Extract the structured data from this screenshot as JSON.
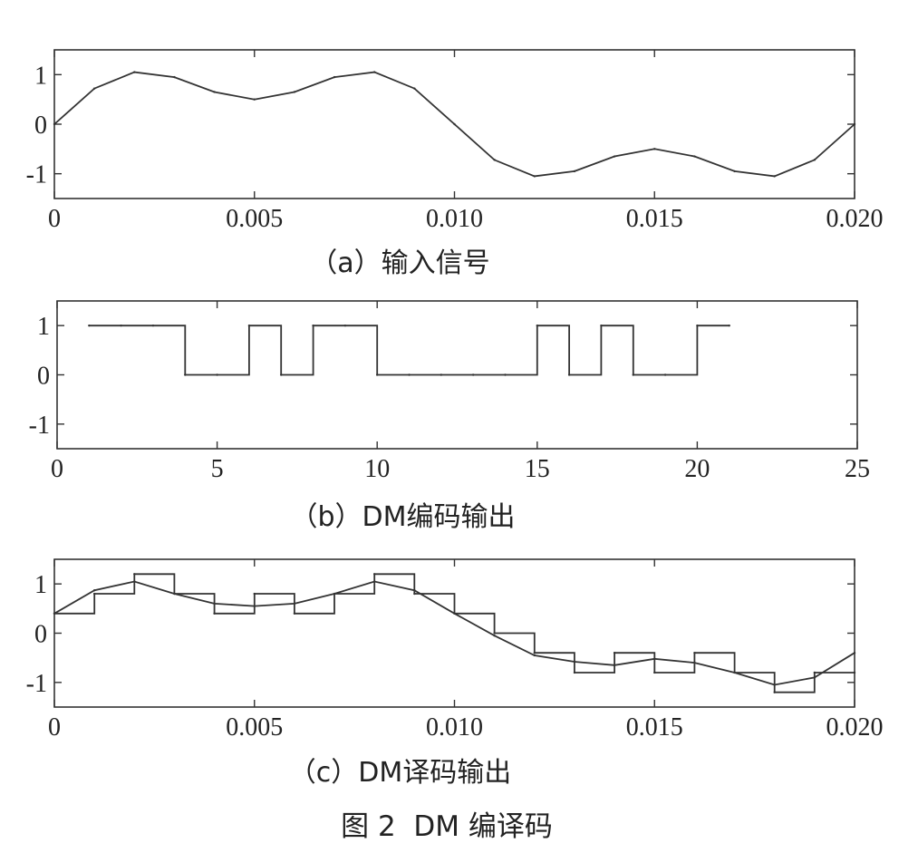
{
  "figure_caption": "图 2  DM 编译码",
  "chart_data": [
    {
      "type": "line",
      "caption": "（a）输入信号",
      "xlim": [
        0,
        0.02
      ],
      "ylim": [
        -1.5,
        1.5
      ],
      "xticks": [
        "0",
        "0.005",
        "0.010",
        "0.015",
        "0.020"
      ],
      "xtick_values": [
        0,
        0.005,
        0.01,
        0.015,
        0.02
      ],
      "yticks": [
        "1",
        "0",
        "-1"
      ],
      "ytick_values": [
        1,
        0,
        -1
      ],
      "series": [
        {
          "style": "line",
          "x": [
            0,
            0.001,
            0.002,
            0.003,
            0.004,
            0.005,
            0.006,
            0.007,
            0.008,
            0.009,
            0.01,
            0.011,
            0.012,
            0.013,
            0.014,
            0.015,
            0.016,
            0.017,
            0.018,
            0.019,
            0.02
          ],
          "y": [
            0,
            0.72,
            1.05,
            0.95,
            0.65,
            0.5,
            0.65,
            0.95,
            1.05,
            0.72,
            0,
            -0.72,
            -1.05,
            -0.95,
            -0.65,
            -0.5,
            -0.65,
            -0.95,
            -1.05,
            -0.72,
            0
          ]
        }
      ]
    },
    {
      "type": "line",
      "caption": "（b）DM编码输出",
      "xlim": [
        0,
        25
      ],
      "ylim": [
        -1.5,
        1.5
      ],
      "xticks": [
        "0",
        "5",
        "10",
        "15",
        "20",
        "25"
      ],
      "xtick_values": [
        0,
        5,
        10,
        15,
        20,
        25
      ],
      "yticks": [
        "1",
        "0",
        "-1"
      ],
      "ytick_values": [
        1,
        0,
        -1
      ],
      "series": [
        {
          "style": "step",
          "x": [
            1,
            2,
            3,
            4,
            5,
            6,
            7,
            8,
            9,
            10,
            11,
            12,
            13,
            14,
            15,
            16,
            17,
            18,
            19,
            20,
            21
          ],
          "y": [
            1,
            1,
            1,
            0,
            0,
            1,
            0,
            1,
            1,
            0,
            0,
            0,
            0,
            0,
            1,
            0,
            1,
            0,
            0,
            1,
            1
          ]
        }
      ]
    },
    {
      "type": "line",
      "caption": "（c）DM译码输出",
      "xlim": [
        0,
        0.02
      ],
      "ylim": [
        -1.5,
        1.5
      ],
      "xticks": [
        "0",
        "0.005",
        "0.010",
        "0.015",
        "0.020"
      ],
      "xtick_values": [
        0,
        0.005,
        0.01,
        0.015,
        0.02
      ],
      "yticks": [
        "1",
        "0",
        "-1"
      ],
      "ytick_values": [
        1,
        0,
        -1
      ],
      "series": [
        {
          "style": "step",
          "x": [
            0,
            0.001,
            0.002,
            0.003,
            0.004,
            0.005,
            0.006,
            0.007,
            0.008,
            0.009,
            0.01,
            0.011,
            0.012,
            0.013,
            0.014,
            0.015,
            0.016,
            0.017,
            0.018,
            0.019,
            0.02
          ],
          "y": [
            0.4,
            0.8,
            1.2,
            0.8,
            0.4,
            0.8,
            0.4,
            0.8,
            1.2,
            0.8,
            0.4,
            0,
            -0.4,
            -0.8,
            -0.4,
            -0.8,
            -0.4,
            -0.8,
            -1.2,
            -0.8,
            -0.8
          ]
        },
        {
          "style": "line",
          "x": [
            0,
            0.001,
            0.002,
            0.003,
            0.004,
            0.005,
            0.006,
            0.007,
            0.008,
            0.009,
            0.01,
            0.011,
            0.012,
            0.013,
            0.014,
            0.015,
            0.016,
            0.017,
            0.018,
            0.019,
            0.02
          ],
          "y": [
            0.4,
            0.87,
            1.05,
            0.8,
            0.6,
            0.55,
            0.6,
            0.8,
            1.05,
            0.87,
            0.4,
            -0.05,
            -0.45,
            -0.58,
            -0.65,
            -0.52,
            -0.6,
            -0.8,
            -1.05,
            -0.9,
            -0.4
          ]
        }
      ]
    }
  ]
}
